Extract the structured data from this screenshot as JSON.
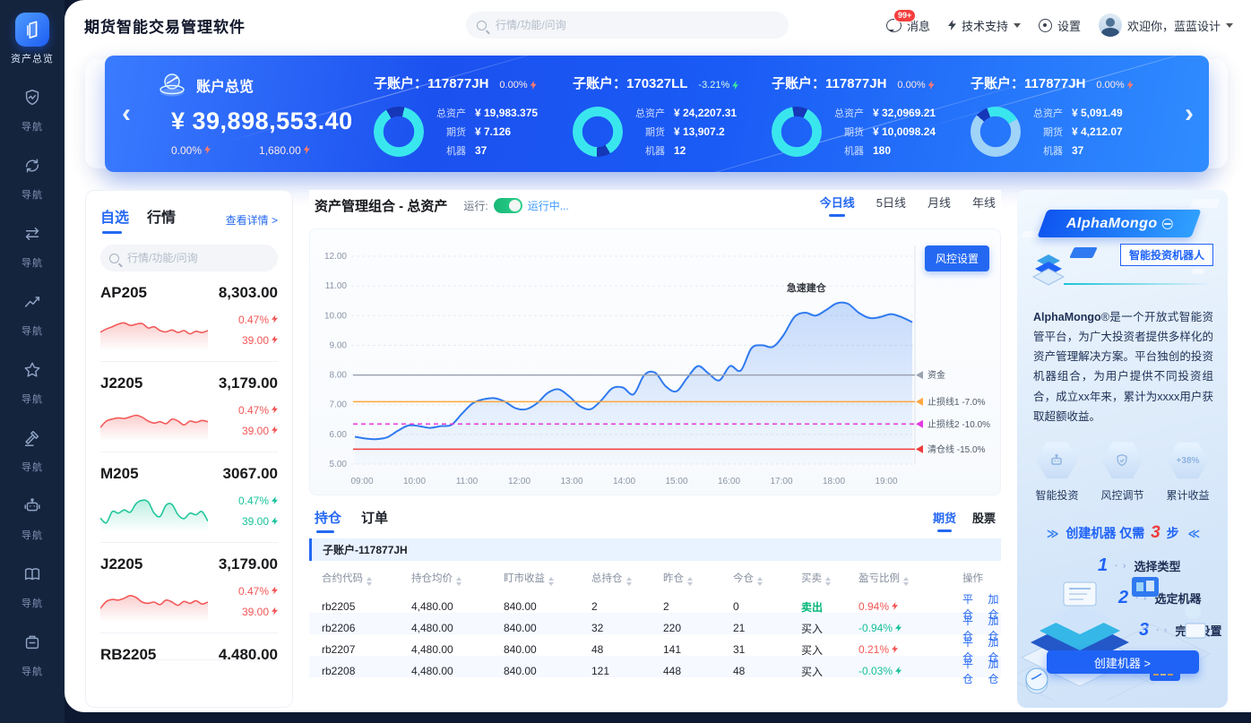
{
  "app": {
    "title": "期货智能交易管理软件"
  },
  "header": {
    "search_placeholder": "行情/功能/问询",
    "message_badge": "99+",
    "messages_label": "消息",
    "support_label": "技术支持",
    "settings_label": "设置",
    "welcome_label": "欢迎你，蓝蓝设计"
  },
  "sidebar": {
    "active_label": "资产总览",
    "items": [
      {
        "icon": "shield-pulse-icon",
        "label": "导航"
      },
      {
        "icon": "sync-icon",
        "label": "导航"
      },
      {
        "icon": "swap-arrows-icon",
        "label": "导航"
      },
      {
        "icon": "trend-chart-icon",
        "label": "导航"
      },
      {
        "icon": "star-icon",
        "label": "导航"
      },
      {
        "icon": "gavel-icon",
        "label": "导航"
      },
      {
        "icon": "robot-icon",
        "label": "导航"
      },
      {
        "icon": "book-icon",
        "label": "导航"
      },
      {
        "icon": "clipboard-icon",
        "label": "导航"
      }
    ]
  },
  "banner": {
    "title": "账户总览",
    "total_amount": "¥ 39,898,553.40",
    "total_pct": "0.00%",
    "total_change": "1,680.00",
    "accounts": [
      {
        "label": "子账户：",
        "id": "117877JH",
        "pct": "0.00%",
        "dir": "up",
        "stats": [
          {
            "k": "总资产",
            "v": "¥ 19,983.375"
          },
          {
            "k": "期货",
            "v": "¥ 7.126"
          },
          {
            "k": "机器",
            "v": "37"
          }
        ],
        "donut": {
          "rotate": -30,
          "segments": [
            {
              "color": "#1537b8",
              "pct": 12
            },
            {
              "color": "#3ae6ee",
              "pct": 88
            }
          ]
        }
      },
      {
        "label": "子账户：",
        "id": "170327LL",
        "pct": "-3.21%",
        "dir": "down",
        "stats": [
          {
            "k": "总资产",
            "v": "¥ 24,2207.31"
          },
          {
            "k": "期货",
            "v": "¥ 13,907.2"
          },
          {
            "k": "机器",
            "v": "12"
          }
        ],
        "donut": {
          "rotate": 150,
          "segments": [
            {
              "color": "#1537b8",
              "pct": 9
            },
            {
              "color": "#3ae6ee",
              "pct": 91
            }
          ]
        }
      },
      {
        "label": "子账户：",
        "id": "117877JH",
        "pct": "0.00%",
        "dir": "up",
        "stats": [
          {
            "k": "总资产",
            "v": "¥ 32,0969.21"
          },
          {
            "k": "期货",
            "v": "¥ 10,0098.24"
          },
          {
            "k": "机器",
            "v": "180"
          }
        ],
        "donut": {
          "rotate": -10,
          "segments": [
            {
              "color": "#1537b8",
              "pct": 10
            },
            {
              "color": "#3ae6ee",
              "pct": 90
            }
          ]
        }
      },
      {
        "label": "子账户：",
        "id": "117877JH",
        "pct": "0.00%",
        "dir": "up",
        "stats": [
          {
            "k": "总资产",
            "v": "¥ 5,091.49"
          },
          {
            "k": "期货",
            "v": "¥ 4,212.07"
          },
          {
            "k": "机器",
            "v": "37"
          }
        ],
        "donut": {
          "rotate": -20,
          "segments": [
            {
              "color": "#3ae6ee",
              "pct": 22
            },
            {
              "color": "#9fd3f8",
              "pct": 70
            },
            {
              "color": "#1537b8",
              "pct": 8
            }
          ]
        }
      }
    ]
  },
  "quotes": {
    "tabs": [
      "自选",
      "行情"
    ],
    "active_tab": "自选",
    "detail_link": "查看详情 >",
    "search_placeholder": "行情/功能/问询",
    "items": [
      {
        "name": "AP205",
        "price": "8,303.00",
        "pct": "0.47%",
        "chg": "39.00",
        "trend": "up",
        "spark": [
          0.45,
          0.55,
          0.62,
          0.7,
          0.74,
          0.66,
          0.7,
          0.72,
          0.58,
          0.62,
          0.5,
          0.46,
          0.52,
          0.44,
          0.5,
          0.4,
          0.48,
          0.44,
          0.5
        ]
      },
      {
        "name": "J2205",
        "price": "3,179.00",
        "pct": "0.47%",
        "chg": "39.00",
        "trend": "up",
        "spark": [
          0.3,
          0.5,
          0.56,
          0.6,
          0.58,
          0.63,
          0.68,
          0.62,
          0.5,
          0.44,
          0.48,
          0.42,
          0.56,
          0.5,
          0.38,
          0.5,
          0.46,
          0.52,
          0.48
        ]
      },
      {
        "name": "M205",
        "price": "3067.00",
        "pct": "0.47%",
        "chg": "39.00",
        "trend": "down",
        "spark": [
          0.3,
          0.15,
          0.5,
          0.45,
          0.55,
          0.48,
          0.75,
          0.85,
          0.8,
          0.45,
          0.35,
          0.7,
          0.72,
          0.4,
          0.28,
          0.45,
          0.4,
          0.5,
          0.2
        ]
      },
      {
        "name": "J2205",
        "price": "3,179.00",
        "pct": "0.47%",
        "chg": "39.00",
        "trend": "up",
        "spark": [
          0.3,
          0.52,
          0.58,
          0.56,
          0.62,
          0.7,
          0.64,
          0.5,
          0.46,
          0.5,
          0.42,
          0.56,
          0.5,
          0.4,
          0.52,
          0.46,
          0.54,
          0.44,
          0.5
        ]
      },
      {
        "name": "RB2205",
        "price": "4,480.00",
        "partial": true
      }
    ]
  },
  "portfolio": {
    "title": "资产管理组合 - 总资产",
    "run_label": "运行:",
    "run_status": "运行中...",
    "risk_button": "风控设置",
    "tabs": [
      "今日线",
      "5日线",
      "月线",
      "年线"
    ],
    "active_tab": "今日线"
  },
  "chart_data": {
    "type": "line",
    "title": "资产管理组合 - 总资产",
    "x_labels": [
      "09:00",
      "10:00",
      "11:00",
      "12:00",
      "13:00",
      "14:00",
      "15:00",
      "16:00",
      "17:00",
      "18:00",
      "19:00"
    ],
    "ylim": [
      5,
      12
    ],
    "yticks": [
      "5.00",
      "6.00",
      "7.00",
      "8.00",
      "9.00",
      "10.00",
      "11.00",
      "12.00"
    ],
    "grid": true,
    "series": [
      {
        "name": "总资产",
        "color": "#2f7af0",
        "values": [
          5.92,
          5.86,
          5.84,
          5.9,
          6.12,
          6.3,
          6.28,
          6.22,
          6.28,
          6.32,
          6.7,
          7.05,
          7.18,
          7.22,
          7.1,
          6.88,
          6.85,
          7.05,
          7.4,
          7.52,
          7.28,
          6.95,
          6.85,
          7.15,
          7.55,
          7.58,
          7.35,
          8.0,
          8.08,
          7.62,
          7.45,
          7.9,
          8.3,
          8.05,
          7.82,
          8.3,
          8.15,
          8.9,
          9.0,
          8.95,
          9.35,
          9.95,
          10.1,
          10.0,
          10.2,
          10.42,
          10.4,
          10.1,
          9.92,
          9.95,
          10.05,
          9.95,
          9.78
        ]
      }
    ],
    "thresholds": [
      {
        "label": "资金",
        "value": 8.0,
        "color": "#9aa2b1",
        "dash": false
      },
      {
        "label": "止损线1 -7.0%",
        "value": 7.1,
        "color": "#ffa63e",
        "dash": false
      },
      {
        "label": "止损线2 -10.0%",
        "value": 6.35,
        "color": "#e43ae0",
        "dash": true
      },
      {
        "label": "清仓线 -15.0%",
        "value": 5.5,
        "color": "#f03a3a",
        "dash": false
      }
    ],
    "annotation": {
      "text": "急速建仓",
      "x_frac": 0.81,
      "value": 10.82
    }
  },
  "positions": {
    "tabs": [
      "持仓",
      "订单"
    ],
    "active_tab": "持仓",
    "right_tabs": [
      "期货",
      "股票"
    ],
    "active_right_tab": "期货",
    "subaccount": "子账户-117877JH",
    "columns": [
      "合约代码",
      "持仓均价",
      "盯市收益",
      "总持仓",
      "昨仓",
      "今仓",
      "买卖",
      "盈亏比例",
      "操作"
    ],
    "actions": {
      "close": "平仓",
      "add": "加仓"
    },
    "rows": [
      {
        "code": "rb2205",
        "avg": "4,480.00",
        "pnl": "840.00",
        "total": "2",
        "yest": "2",
        "today": "0",
        "side": "卖出",
        "side_type": "sell",
        "ratio": "0.94%",
        "dir": "up"
      },
      {
        "code": "rb2206",
        "avg": "4,480.00",
        "pnl": "840.00",
        "total": "32",
        "yest": "220",
        "today": "21",
        "side": "买入",
        "side_type": "buy",
        "ratio": "-0.94%",
        "dir": "down"
      },
      {
        "code": "rb2207",
        "avg": "4,480.00",
        "pnl": "840.00",
        "total": "48",
        "yest": "141",
        "today": "31",
        "side": "买入",
        "side_type": "buy",
        "ratio": "0.21%",
        "dir": "up"
      },
      {
        "code": "rb2208",
        "avg": "4,480.00",
        "pnl": "840.00",
        "total": "121",
        "yest": "448",
        "today": "48",
        "side": "买入",
        "side_type": "buy",
        "ratio": "-0.03%",
        "dir": "down"
      }
    ]
  },
  "promo": {
    "brand": "AlphaMongo",
    "tagline": "智能投资机器人",
    "desc_brand": "AlphaMongo",
    "desc_reg": "®",
    "desc": "是一个开放式智能资管平台，为广大投资者提供多样化的资产管理解决方案。平台独创的投资机器组合，为用户提供不同投资组合，成立xx年来，累计为xxxx用户获取超额收益。",
    "features": [
      {
        "icon": "robot-icon",
        "label": "智能投资"
      },
      {
        "icon": "shield-icon",
        "label": "风控调节"
      },
      {
        "icon": "percent-badge",
        "badge": "+38%",
        "label": "累计收益"
      }
    ],
    "steps_title": {
      "arrow_l": "≫",
      "a": "创建机器",
      "b": "仅需",
      "num": "3",
      "c": "步",
      "arrow_r": "≪"
    },
    "step_arrow": "· ›",
    "steps": [
      {
        "num": "1",
        "label": "选择类型"
      },
      {
        "num": "2",
        "label": "选定机器"
      },
      {
        "num": "3",
        "label": "完成设置"
      }
    ],
    "cta": "创建机器 >"
  },
  "colors": {
    "accent": "#2468f2",
    "up": "#f25555",
    "down": "#16c29b",
    "banner_cyan": "#3ae6ee"
  }
}
